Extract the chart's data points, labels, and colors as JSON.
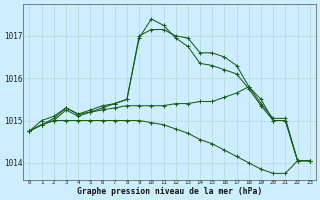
{
  "title": "Graphe pression niveau de la mer (hPa)",
  "bg_color": "#cceeff",
  "grid_color": "#bbdddd",
  "line_color": "#1a5c1a",
  "x_min": 0,
  "x_max": 23,
  "y_min": 1013.6,
  "y_max": 1017.75,
  "yticks": [
    1014,
    1015,
    1016,
    1017
  ],
  "xticks": [
    0,
    1,
    2,
    3,
    4,
    5,
    6,
    7,
    8,
    9,
    10,
    11,
    12,
    13,
    14,
    15,
    16,
    17,
    18,
    19,
    20,
    21,
    22,
    23
  ],
  "series": [
    [
      1014.75,
      1014.9,
      1015.0,
      1015.25,
      1015.1,
      1015.2,
      1015.3,
      1015.4,
      1015.5,
      1017.0,
      1017.15,
      1017.15,
      1017.0,
      1016.95,
      1016.6,
      1016.6,
      1016.5,
      1016.3,
      1015.8,
      1015.5,
      1015.0,
      1015.0,
      1014.05,
      1014.05
    ],
    [
      1014.75,
      1014.9,
      1015.05,
      1015.3,
      1015.15,
      1015.25,
      1015.35,
      1015.4,
      1015.5,
      1016.95,
      1017.4,
      1017.25,
      1016.95,
      1016.75,
      1016.35,
      1016.3,
      1016.2,
      1016.1,
      1015.75,
      1015.35,
      1015.0,
      1015.0,
      1014.05,
      1014.05
    ],
    [
      1014.75,
      1015.0,
      1015.1,
      1015.3,
      1015.15,
      1015.2,
      1015.25,
      1015.3,
      1015.35,
      1015.35,
      1015.35,
      1015.35,
      1015.4,
      1015.4,
      1015.45,
      1015.45,
      1015.55,
      1015.65,
      1015.8,
      1015.4,
      1015.05,
      1015.05,
      1014.05,
      1014.05
    ],
    [
      1014.75,
      1014.9,
      1015.0,
      1015.0,
      1015.0,
      1015.0,
      1015.0,
      1015.0,
      1015.0,
      1015.0,
      1014.95,
      1014.9,
      1014.8,
      1014.7,
      1014.55,
      1014.45,
      1014.3,
      1014.15,
      1014.0,
      1013.85,
      1013.75,
      1013.75,
      1014.05,
      1014.05
    ]
  ]
}
